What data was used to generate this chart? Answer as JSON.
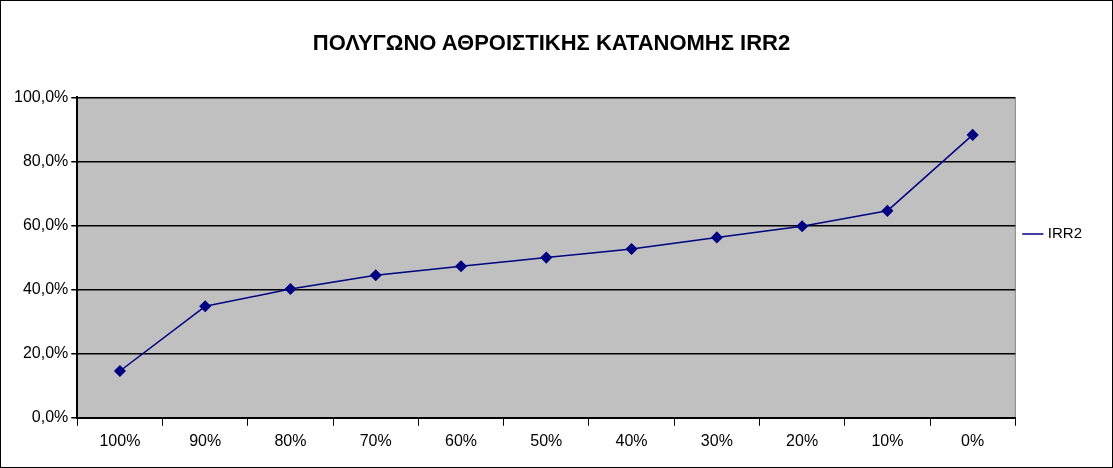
{
  "chart_data": {
    "type": "line",
    "title": "ΠΟΛΥΓΩΝΟ ΑΘΡΟΙΣΤΙΚΗΣ ΚΑΤΑΝΟΜΗΣ IRR2",
    "categories": [
      "100%",
      "90%",
      "80%",
      "70%",
      "60%",
      "50%",
      "40%",
      "30%",
      "20%",
      "10%",
      "0%"
    ],
    "series": [
      {
        "name": "IRR2",
        "color": "#000080",
        "values": [
          14.6,
          34.8,
          40.2,
          44.5,
          47.3,
          50.0,
          52.7,
          56.3,
          59.8,
          64.6,
          88.3
        ]
      }
    ],
    "ylim": [
      0,
      100
    ],
    "yticks": [
      {
        "value": 0,
        "label": "0,0%"
      },
      {
        "value": 20,
        "label": "20,0%"
      },
      {
        "value": 40,
        "label": "40,0%"
      },
      {
        "value": 60,
        "label": "60,0%"
      },
      {
        "value": 80,
        "label": "80,0%"
      },
      {
        "value": 100,
        "label": "100,0%"
      }
    ],
    "grid": "y",
    "legend": "right",
    "marker": "diamond",
    "line_style": "solid"
  }
}
